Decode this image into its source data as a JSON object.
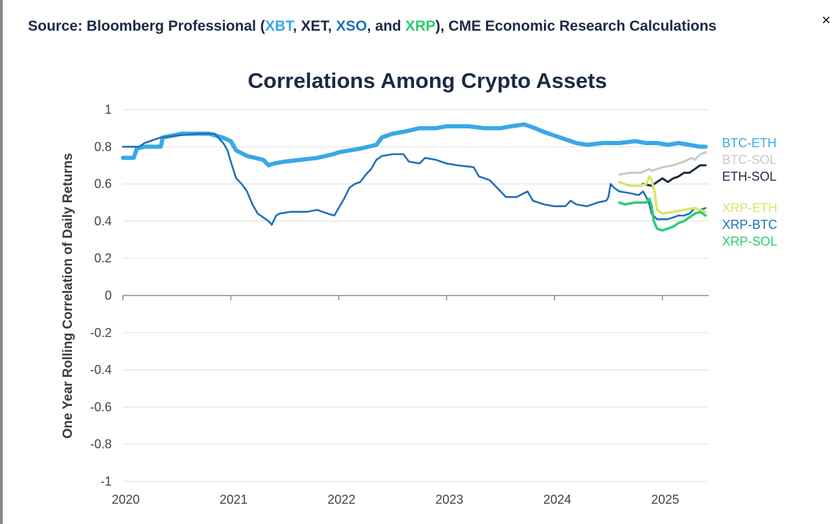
{
  "source": {
    "prefix": "Source: Bloomberg Professional (",
    "t1": "XBT",
    "sep1": ", XET, ",
    "t2": "XSO",
    "sep2": ", and ",
    "t3": "XRP",
    "suffix": "), CME Economic Research Calculations"
  },
  "close_label": "×",
  "colors": {
    "btc_eth": "#3aa8e6",
    "btc_sol": "#c8c8c8",
    "eth_sol": "#1b2a44",
    "xrp_eth": "#dfe36a",
    "xrp_btc": "#1f6fb8",
    "xrp_sol": "#2ecc71",
    "title": "#1b2a44"
  },
  "chart_data": {
    "type": "line",
    "title": "Correlations Among Crypto Assets",
    "ylabel": "One Year Rolling Correlation of Daily Returns",
    "xlabel": "",
    "xlim": [
      2020.0,
      2025.43
    ],
    "ylim": [
      -1,
      1
    ],
    "x_ticks": [
      2020,
      2021,
      2022,
      2023,
      2024,
      2025
    ],
    "x_tick_labels": [
      "2020",
      "2021",
      "2022",
      "2023",
      "2024",
      "2025"
    ],
    "y_ticks": [
      1,
      0.8,
      0.6,
      0.4,
      0.2,
      0,
      -0.2,
      -0.4,
      -0.6,
      -0.8,
      -1
    ],
    "y_tick_labels": [
      "1",
      "0.8",
      "0.6",
      "0.4",
      "0.2",
      "0",
      "-0.2",
      "-0.4",
      "-0.6",
      "-0.8",
      "-1"
    ],
    "grid": "horizontal",
    "legend_position": "right",
    "series": [
      {
        "name": "BTC-ETH",
        "key": "btc_eth",
        "points": [
          [
            2020.0,
            0.74
          ],
          [
            2020.1,
            0.74
          ],
          [
            2020.13,
            0.79
          ],
          [
            2020.2,
            0.8
          ],
          [
            2020.35,
            0.8
          ],
          [
            2020.37,
            0.85
          ],
          [
            2020.55,
            0.87
          ],
          [
            2020.8,
            0.87
          ],
          [
            2020.92,
            0.85
          ],
          [
            2021.0,
            0.83
          ],
          [
            2021.05,
            0.78
          ],
          [
            2021.15,
            0.75
          ],
          [
            2021.3,
            0.73
          ],
          [
            2021.35,
            0.7
          ],
          [
            2021.4,
            0.71
          ],
          [
            2021.5,
            0.72
          ],
          [
            2021.65,
            0.73
          ],
          [
            2021.8,
            0.74
          ],
          [
            2021.95,
            0.76
          ],
          [
            2022.0,
            0.77
          ],
          [
            2022.1,
            0.78
          ],
          [
            2022.2,
            0.79
          ],
          [
            2022.35,
            0.81
          ],
          [
            2022.4,
            0.85
          ],
          [
            2022.5,
            0.87
          ],
          [
            2022.6,
            0.88
          ],
          [
            2022.75,
            0.9
          ],
          [
            2022.9,
            0.9
          ],
          [
            2023.0,
            0.91
          ],
          [
            2023.2,
            0.91
          ],
          [
            2023.35,
            0.9
          ],
          [
            2023.5,
            0.9
          ],
          [
            2023.6,
            0.91
          ],
          [
            2023.72,
            0.92
          ],
          [
            2023.82,
            0.9
          ],
          [
            2023.9,
            0.88
          ],
          [
            2024.0,
            0.86
          ],
          [
            2024.1,
            0.84
          ],
          [
            2024.2,
            0.82
          ],
          [
            2024.3,
            0.81
          ],
          [
            2024.45,
            0.82
          ],
          [
            2024.6,
            0.82
          ],
          [
            2024.75,
            0.83
          ],
          [
            2024.85,
            0.82
          ],
          [
            2024.95,
            0.82
          ],
          [
            2025.05,
            0.81
          ],
          [
            2025.15,
            0.82
          ],
          [
            2025.25,
            0.81
          ],
          [
            2025.35,
            0.8
          ],
          [
            2025.4,
            0.8
          ]
        ]
      },
      {
        "name": "BTC-SOL",
        "key": "btc_sol",
        "points": [
          [
            2024.6,
            0.65
          ],
          [
            2024.7,
            0.66
          ],
          [
            2024.8,
            0.66
          ],
          [
            2024.88,
            0.68
          ],
          [
            2024.9,
            0.67
          ],
          [
            2025.0,
            0.69
          ],
          [
            2025.1,
            0.7
          ],
          [
            2025.2,
            0.72
          ],
          [
            2025.27,
            0.74
          ],
          [
            2025.3,
            0.73
          ],
          [
            2025.35,
            0.76
          ],
          [
            2025.4,
            0.77
          ]
        ]
      },
      {
        "name": "ETH-SOL",
        "key": "eth_sol",
        "points": [
          [
            2024.82,
            0.6
          ],
          [
            2024.9,
            0.59
          ],
          [
            2024.95,
            0.61
          ],
          [
            2025.0,
            0.63
          ],
          [
            2025.05,
            0.61
          ],
          [
            2025.1,
            0.63
          ],
          [
            2025.15,
            0.64
          ],
          [
            2025.2,
            0.66
          ],
          [
            2025.25,
            0.66
          ],
          [
            2025.3,
            0.68
          ],
          [
            2025.35,
            0.7
          ],
          [
            2025.4,
            0.7
          ]
        ]
      },
      {
        "name": "XRP-ETH",
        "key": "xrp_eth",
        "points": [
          [
            2024.6,
            0.61
          ],
          [
            2024.65,
            0.6
          ],
          [
            2024.7,
            0.59
          ],
          [
            2024.8,
            0.59
          ],
          [
            2024.85,
            0.6
          ],
          [
            2024.88,
            0.64
          ],
          [
            2024.9,
            0.62
          ],
          [
            2024.93,
            0.55
          ],
          [
            2024.95,
            0.46
          ],
          [
            2025.0,
            0.44
          ],
          [
            2025.1,
            0.45
          ],
          [
            2025.2,
            0.46
          ],
          [
            2025.3,
            0.47
          ],
          [
            2025.4,
            0.45
          ]
        ]
      },
      {
        "name": "XRP-BTC",
        "key": "xrp_btc",
        "points": [
          [
            2020.0,
            0.8
          ],
          [
            2020.15,
            0.8
          ],
          [
            2020.2,
            0.82
          ],
          [
            2020.35,
            0.85
          ],
          [
            2020.5,
            0.86
          ],
          [
            2020.7,
            0.87
          ],
          [
            2020.85,
            0.87
          ],
          [
            2020.93,
            0.82
          ],
          [
            2020.97,
            0.78
          ],
          [
            2021.0,
            0.72
          ],
          [
            2021.05,
            0.63
          ],
          [
            2021.1,
            0.6
          ],
          [
            2021.15,
            0.56
          ],
          [
            2021.2,
            0.49
          ],
          [
            2021.25,
            0.44
          ],
          [
            2021.3,
            0.42
          ],
          [
            2021.35,
            0.4
          ],
          [
            2021.38,
            0.38
          ],
          [
            2021.42,
            0.43
          ],
          [
            2021.45,
            0.44
          ],
          [
            2021.55,
            0.45
          ],
          [
            2021.7,
            0.45
          ],
          [
            2021.8,
            0.46
          ],
          [
            2021.9,
            0.44
          ],
          [
            2021.96,
            0.43
          ],
          [
            2022.0,
            0.47
          ],
          [
            2022.05,
            0.52
          ],
          [
            2022.1,
            0.58
          ],
          [
            2022.15,
            0.6
          ],
          [
            2022.2,
            0.61
          ],
          [
            2022.25,
            0.65
          ],
          [
            2022.3,
            0.68
          ],
          [
            2022.35,
            0.73
          ],
          [
            2022.4,
            0.75
          ],
          [
            2022.5,
            0.76
          ],
          [
            2022.6,
            0.76
          ],
          [
            2022.65,
            0.72
          ],
          [
            2022.75,
            0.71
          ],
          [
            2022.8,
            0.74
          ],
          [
            2022.9,
            0.73
          ],
          [
            2023.0,
            0.71
          ],
          [
            2023.1,
            0.7
          ],
          [
            2023.25,
            0.69
          ],
          [
            2023.3,
            0.64
          ],
          [
            2023.4,
            0.62
          ],
          [
            2023.5,
            0.56
          ],
          [
            2023.55,
            0.53
          ],
          [
            2023.65,
            0.53
          ],
          [
            2023.75,
            0.56
          ],
          [
            2023.8,
            0.51
          ],
          [
            2023.9,
            0.49
          ],
          [
            2024.0,
            0.48
          ],
          [
            2024.1,
            0.48
          ],
          [
            2024.15,
            0.51
          ],
          [
            2024.2,
            0.49
          ],
          [
            2024.3,
            0.48
          ],
          [
            2024.4,
            0.5
          ],
          [
            2024.48,
            0.51
          ],
          [
            2024.5,
            0.53
          ],
          [
            2024.52,
            0.6
          ],
          [
            2024.55,
            0.58
          ],
          [
            2024.6,
            0.56
          ],
          [
            2024.7,
            0.55
          ],
          [
            2024.78,
            0.54
          ],
          [
            2024.82,
            0.56
          ],
          [
            2024.85,
            0.53
          ],
          [
            2024.88,
            0.49
          ],
          [
            2024.9,
            0.44
          ],
          [
            2024.95,
            0.41
          ],
          [
            2025.05,
            0.41
          ],
          [
            2025.1,
            0.42
          ],
          [
            2025.15,
            0.43
          ],
          [
            2025.2,
            0.43
          ],
          [
            2025.25,
            0.44
          ],
          [
            2025.3,
            0.47
          ],
          [
            2025.35,
            0.46
          ],
          [
            2025.4,
            0.47
          ]
        ]
      },
      {
        "name": "XRP-SOL",
        "key": "xrp_sol",
        "points": [
          [
            2024.6,
            0.5
          ],
          [
            2024.65,
            0.49
          ],
          [
            2024.75,
            0.5
          ],
          [
            2024.85,
            0.5
          ],
          [
            2024.88,
            0.52
          ],
          [
            2024.9,
            0.48
          ],
          [
            2024.92,
            0.4
          ],
          [
            2024.95,
            0.36
          ],
          [
            2025.0,
            0.35
          ],
          [
            2025.05,
            0.36
          ],
          [
            2025.1,
            0.37
          ],
          [
            2025.15,
            0.39
          ],
          [
            2025.2,
            0.4
          ],
          [
            2025.25,
            0.42
          ],
          [
            2025.3,
            0.44
          ],
          [
            2025.35,
            0.45
          ],
          [
            2025.4,
            0.43
          ]
        ]
      }
    ],
    "legend": [
      {
        "label": "BTC-ETH",
        "key": "btc_eth",
        "y": 0.82
      },
      {
        "label": "BTC-SOL",
        "key": "btc_sol",
        "y": 0.73
      },
      {
        "label": "ETH-SOL",
        "key": "eth_sol",
        "y": 0.64
      },
      {
        "label": "XRP-ETH",
        "key": "xrp_eth",
        "y": 0.47
      },
      {
        "label": "XRP-BTC",
        "key": "xrp_btc",
        "y": 0.38
      },
      {
        "label": "XRP-SOL",
        "key": "xrp_sol",
        "y": 0.29
      }
    ]
  }
}
